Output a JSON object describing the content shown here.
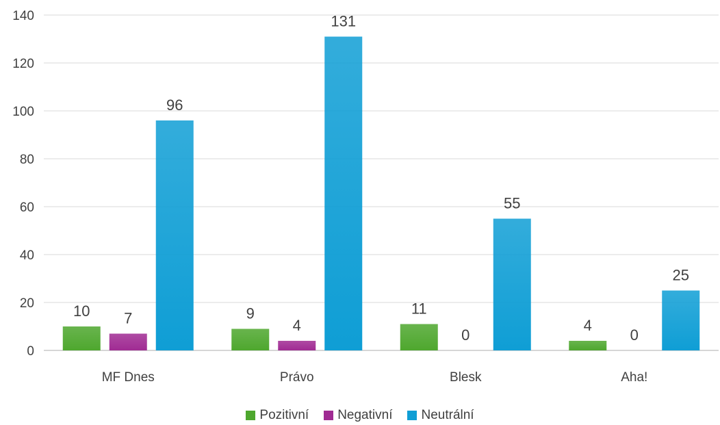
{
  "chart_data": {
    "type": "bar",
    "categories": [
      "MF Dnes",
      "Právo",
      "Blesk",
      "Aha!"
    ],
    "series": [
      {
        "name": "Pozitivní",
        "values": [
          10,
          9,
          11,
          4
        ],
        "color": "#4ea72e"
      },
      {
        "name": "Negativní",
        "values": [
          7,
          4,
          0,
          0
        ],
        "color": "#a02b93"
      },
      {
        "name": "Neutrální",
        "values": [
          96,
          131,
          55,
          25
        ],
        "color": "#0f9ed5"
      }
    ],
    "title": "",
    "xlabel": "",
    "ylabel": "",
    "ylim": [
      0,
      140
    ],
    "yticks": [
      "0",
      "20",
      "40",
      "60",
      "80",
      "100",
      "120",
      "140"
    ],
    "grid": true,
    "legend_position": "bottom",
    "data_labels": true
  }
}
